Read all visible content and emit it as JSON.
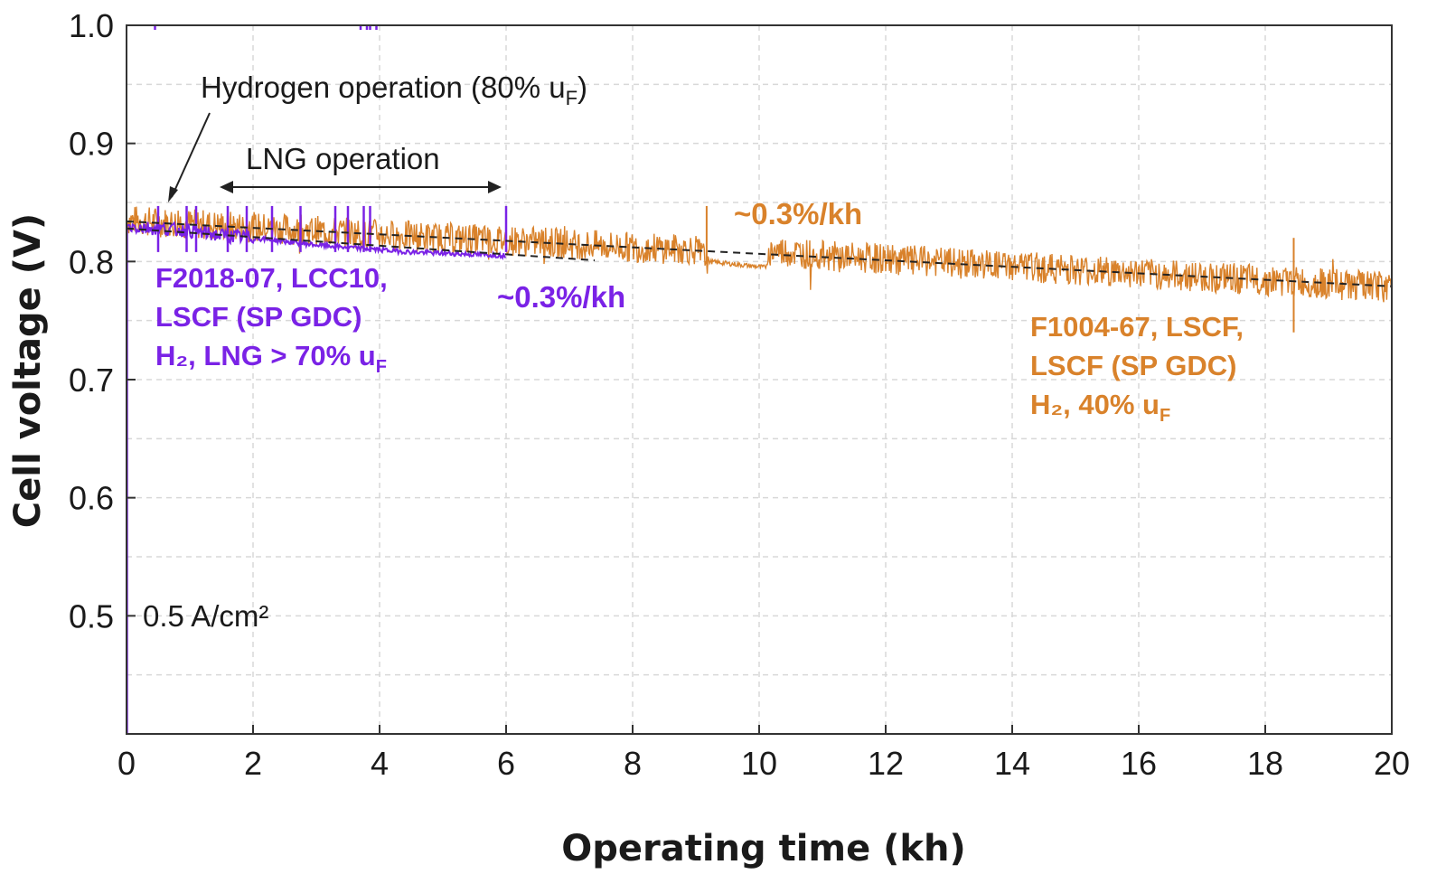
{
  "chart_data": {
    "type": "line",
    "xlabel": "Operating time (kh)",
    "ylabel": "Cell voltage (V)",
    "xlim": [
      0,
      20
    ],
    "ylim": [
      0.4,
      1.0
    ],
    "x_ticks": [
      0,
      2,
      4,
      6,
      8,
      10,
      12,
      14,
      16,
      18,
      20
    ],
    "y_ticks": [
      0.5,
      0.6,
      0.7,
      0.8,
      0.9,
      1.0
    ],
    "grid": true,
    "colors": {
      "purple": "#7a22e6",
      "orange": "#d9822b",
      "trend": "#222222"
    },
    "series": [
      {
        "label_lines": [
          "F2018-07, LCC10,",
          "LSCF (SP GDC)",
          "H₂, LNG > 70% uF"
        ],
        "color": "#7a22e6",
        "x": [
          0.0,
          0.5,
          1.0,
          1.5,
          2.0,
          2.5,
          3.0,
          3.5,
          4.0,
          4.5,
          5.0,
          5.5,
          6.0
        ],
        "y": [
          0.83,
          0.828,
          0.826,
          0.822,
          0.82,
          0.817,
          0.814,
          0.812,
          0.81,
          0.808,
          0.807,
          0.806,
          0.805
        ]
      },
      {
        "label_lines": [
          "F1004-67, LSCF,",
          "LSCF (SP GDC)",
          "H₂, 40% uF"
        ],
        "color": "#d9822b",
        "x": [
          0,
          1,
          2,
          3,
          4,
          5,
          6,
          7,
          8,
          9,
          9.2,
          10.1,
          10.2,
          11,
          12,
          13,
          14,
          15,
          16,
          17,
          18,
          19,
          20
        ],
        "y": [
          0.835,
          0.832,
          0.829,
          0.826,
          0.823,
          0.82,
          0.818,
          0.815,
          0.812,
          0.81,
          0.8,
          0.795,
          0.81,
          0.805,
          0.802,
          0.799,
          0.796,
          0.793,
          0.79,
          0.787,
          0.784,
          0.781,
          0.778
        ]
      }
    ],
    "trendlines": [
      {
        "x": [
          0,
          7.4
        ],
        "y": [
          0.828,
          0.801
        ]
      },
      {
        "x": [
          0,
          20
        ],
        "y": [
          0.834,
          0.779
        ]
      }
    ],
    "annotations": {
      "hydrogen": "Hydrogen operation (80% u",
      "hydrogen_sub": "F",
      "hydrogen_close": ")",
      "lng": "LNG operation",
      "current_density": "0.5 A/cm²",
      "rate_purple": "~0.3%/kh",
      "rate_orange": "~0.3%/kh"
    }
  }
}
